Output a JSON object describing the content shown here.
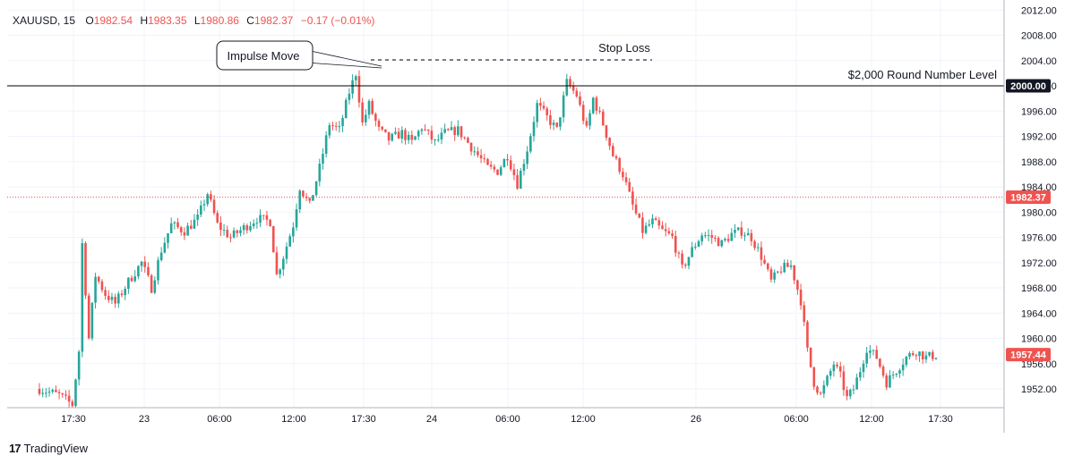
{
  "header": {
    "symbol": "XAUUSD, 15",
    "o_label": "O",
    "o_value": "1982.54",
    "h_label": "H",
    "h_value": "1983.35",
    "l_label": "L",
    "l_value": "1980.86",
    "c_label": "C",
    "c_value": "1982.37",
    "change": "−0.17 (−0.01%)"
  },
  "footer": {
    "brand": "TradingView",
    "logo_glyph": "17"
  },
  "colors": {
    "up": "#26a69a",
    "down": "#ef5350",
    "text": "#131722",
    "grid": "#f0f3fa"
  },
  "chart_data": {
    "type": "candlestick",
    "symbol": "XAUUSD",
    "timeframe": "15",
    "y_axis": {
      "ticks": [
        "1952.00",
        "1956.00",
        "1960.00",
        "1964.00",
        "1968.00",
        "1972.00",
        "1976.00",
        "1980.00",
        "1984.00",
        "1988.00",
        "1992.00",
        "1996.00",
        "2000.00",
        "2004.00",
        "2008.00",
        "2012.00"
      ],
      "range": [
        1949.0,
        2013.0
      ]
    },
    "x_axis": {
      "ticks": [
        "17:30",
        "23",
        "06:00",
        "12:00",
        "17:30",
        "24",
        "06:00",
        "12:00",
        "26",
        "06:00",
        "12:00",
        "17:30"
      ]
    },
    "price_tags": {
      "level": "2000.00",
      "last": "1982.37",
      "current": "1957.44"
    },
    "annotations": {
      "callout": "Impulse Move",
      "stop_loss": "Stop Loss",
      "level_label": "$2,000 Round Number Level",
      "stop_loss_price": 2004.1,
      "round_level_price": 2000.0
    },
    "price_path": [
      [
        0,
        1952.0
      ],
      [
        6,
        1951.0
      ],
      [
        10,
        1949.5
      ],
      [
        12,
        1958.0
      ],
      [
        13,
        1975.0
      ],
      [
        15,
        1960.0
      ],
      [
        17,
        1970.0
      ],
      [
        20,
        1967.0
      ],
      [
        23,
        1965.5
      ],
      [
        27,
        1969.0
      ],
      [
        31,
        1972.0
      ],
      [
        34,
        1968.0
      ],
      [
        37,
        1974.0
      ],
      [
        40,
        1978.0
      ],
      [
        44,
        1977.0
      ],
      [
        48,
        1979.0
      ],
      [
        51,
        1983.0
      ],
      [
        54,
        1978.0
      ],
      [
        58,
        1976.0
      ],
      [
        62,
        1977.5
      ],
      [
        66,
        1979.0
      ],
      [
        70,
        1978.5
      ],
      [
        72,
        1970.0
      ],
      [
        74,
        1973.0
      ],
      [
        77,
        1978.0
      ],
      [
        79,
        1984.0
      ],
      [
        82,
        1981.0
      ],
      [
        85,
        1987.0
      ],
      [
        88,
        1994.0
      ],
      [
        91,
        1993.0
      ],
      [
        94,
        1999.0
      ],
      [
        96,
        2002.0
      ],
      [
        98,
        1994.0
      ],
      [
        100,
        1997.0
      ],
      [
        103,
        1993.0
      ],
      [
        106,
        1991.5
      ],
      [
        110,
        1992.5
      ],
      [
        113,
        1991.0
      ],
      [
        116,
        1993.5
      ],
      [
        120,
        1991.0
      ],
      [
        123,
        1992.5
      ],
      [
        127,
        1993.0
      ],
      [
        130,
        1991.0
      ],
      [
        133,
        1989.0
      ],
      [
        136,
        1987.0
      ],
      [
        139,
        1986.5
      ],
      [
        142,
        1989.0
      ],
      [
        145,
        1984.5
      ],
      [
        148,
        1990.0
      ],
      [
        151,
        1997.0
      ],
      [
        154,
        1995.0
      ],
      [
        157,
        1993.0
      ],
      [
        160,
        2000.5
      ],
      [
        163,
        1998.5
      ],
      [
        166,
        1993.0
      ],
      [
        168,
        1998.0
      ],
      [
        171,
        1994.0
      ],
      [
        174,
        1989.0
      ],
      [
        177,
        1986.0
      ],
      [
        180,
        1981.0
      ],
      [
        183,
        1977.0
      ],
      [
        186,
        1978.5
      ],
      [
        189,
        1977.0
      ],
      [
        192,
        1976.0
      ],
      [
        195,
        1971.0
      ],
      [
        198,
        1974.0
      ],
      [
        201,
        1976.5
      ],
      [
        204,
        1976.0
      ],
      [
        207,
        1975.0
      ],
      [
        210,
        1976.5
      ],
      [
        213,
        1977.0
      ],
      [
        216,
        1976.0
      ],
      [
        219,
        1973.0
      ],
      [
        222,
        1969.0
      ],
      [
        225,
        1971.0
      ],
      [
        228,
        1971.5
      ],
      [
        231,
        1966.0
      ],
      [
        233,
        1958.0
      ],
      [
        235,
        1953.0
      ],
      [
        237,
        1951.0
      ],
      [
        239,
        1953.5
      ],
      [
        241,
        1956.0
      ],
      [
        243,
        1954.0
      ],
      [
        245,
        1950.5
      ],
      [
        247,
        1952.0
      ],
      [
        249,
        1955.0
      ],
      [
        251,
        1958.5
      ],
      [
        254,
        1957.0
      ],
      [
        257,
        1953.0
      ],
      [
        260,
        1955.0
      ],
      [
        263,
        1957.0
      ],
      [
        266,
        1958.0
      ],
      [
        269,
        1957.0
      ],
      [
        272,
        1957.4
      ]
    ]
  }
}
